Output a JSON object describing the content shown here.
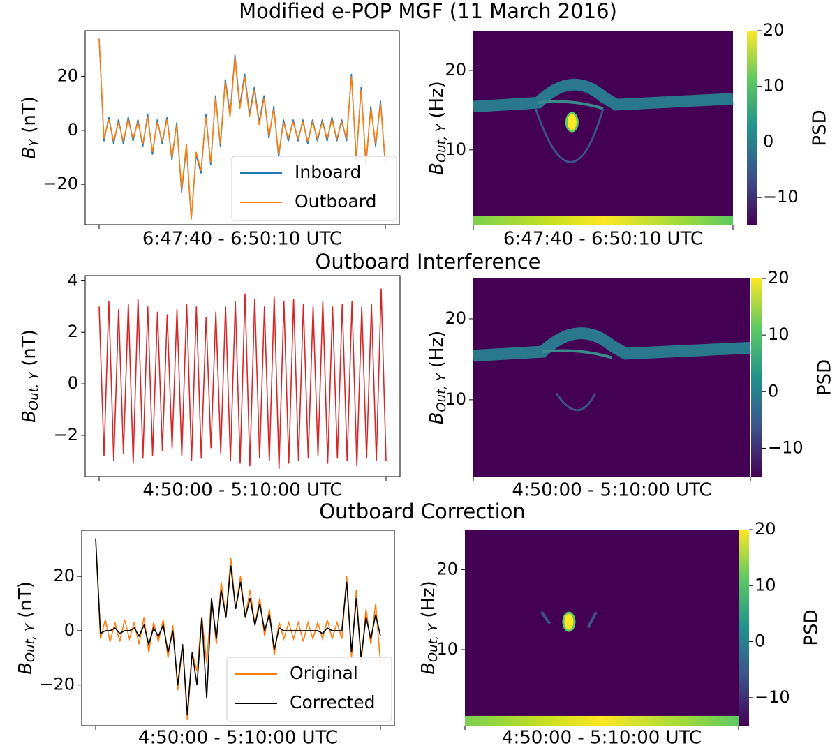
{
  "chart_data": [
    {
      "type": "line",
      "title": "Modified e-POP MGF (11 March 2016)",
      "x_label": "6:47:40 - 6:50:10 UTC",
      "y_label": {
        "base": "B",
        "sub": "Y",
        "unit": " (nT)"
      },
      "ylim": [
        -35,
        37
      ],
      "yticks": [
        {
          "value": -20,
          "label": "−20"
        },
        0,
        20
      ],
      "legend": "lower right",
      "series": [
        {
          "name": "Inboard",
          "color": "#1f77b4",
          "values": [
            34,
            -4,
            5,
            -5,
            4,
            -5,
            5,
            -4,
            4,
            -6,
            6,
            -9,
            4,
            -5,
            5,
            -11,
            3,
            -23,
            -6,
            -33,
            -9,
            -16,
            6,
            -13,
            13,
            -6,
            19,
            6,
            28,
            9,
            21,
            6,
            16,
            3,
            13,
            -3,
            9,
            -10,
            4,
            -4,
            4,
            -4,
            4,
            -5,
            4,
            -4,
            4,
            -4,
            5,
            -4,
            4,
            -4,
            21,
            -11,
            16,
            -13,
            9,
            -6,
            11,
            -13
          ]
        },
        {
          "name": "Outboard",
          "color": "#ff7f0e",
          "values": [
            34,
            -3,
            4,
            -4,
            3,
            -4,
            4,
            -3,
            3,
            -5,
            5,
            -8,
            3,
            -4,
            4,
            -10,
            2,
            -22,
            -5,
            -33,
            -8,
            -15,
            5,
            -12,
            12,
            -5,
            18,
            5,
            27,
            8,
            20,
            5,
            15,
            2,
            12,
            -2,
            8,
            -9,
            3,
            -3,
            3,
            -3,
            3,
            -4,
            3,
            -3,
            3,
            -3,
            4,
            -3,
            3,
            -3,
            20,
            -10,
            15,
            -12,
            8,
            -5,
            10,
            -12
          ]
        }
      ]
    },
    {
      "type": "spectrogram",
      "x_label": "6:47:40 - 6:50:10 UTC",
      "y_label": {
        "base": "B",
        "sub": "Out, Y",
        "unit": " (Hz)"
      },
      "ylim": [
        0.5,
        25
      ],
      "yticks": [
        10,
        20
      ],
      "colorbar": {
        "label": "PSD",
        "lim": [
          -15,
          20
        ],
        "ticks": [
          {
            "value": -10,
            "label": "−10"
          },
          0,
          10,
          20
        ]
      }
    },
    {
      "type": "line",
      "title": "Outboard Interference",
      "x_label": "4:50:00 - 5:10:00 UTC",
      "y_label": {
        "base": "B",
        "sub": "Out, Y",
        "unit": " (nT)"
      },
      "ylim": [
        -3.6,
        4.2
      ],
      "yticks": [
        {
          "value": -2,
          "label": "−2"
        },
        0,
        2,
        4
      ],
      "series": [
        {
          "color": "#d62728",
          "values": [
            3,
            -2.8,
            3.2,
            -3,
            2.9,
            -2.7,
            3.1,
            -3.1,
            3.3,
            -2.9,
            3,
            -2.8,
            2.8,
            -2.6,
            2.7,
            -2.5,
            2.9,
            -2.8,
            3.1,
            -3,
            3,
            -2.9,
            2.6,
            -2.5,
            2.8,
            -2.7,
            3,
            -3,
            3.2,
            -3.1,
            3.5,
            -3.2,
            3.3,
            -2.9,
            3,
            -3,
            3.4,
            -3.3,
            3.2,
            -3.1,
            3.3,
            -3,
            3.1,
            -2.9,
            3,
            -2.8,
            3.2,
            -3.1,
            3,
            -2.9,
            3.1,
            -3,
            3.2,
            -3.2,
            3,
            -2.9,
            3.1,
            -3,
            3.7,
            -3
          ]
        }
      ]
    },
    {
      "type": "spectrogram",
      "x_label": "4:50:00 - 5:10:00 UTC",
      "y_label": {
        "base": "B",
        "sub": "Out, Y",
        "unit": " (Hz)"
      },
      "ylim": [
        0.5,
        25
      ],
      "yticks": [
        10,
        20
      ],
      "colorbar": {
        "label": "PSD",
        "lim": [
          -15,
          20
        ],
        "ticks": [
          {
            "value": -10,
            "label": "−10"
          },
          0,
          10,
          20
        ]
      }
    },
    {
      "type": "line",
      "title": "Outboard Correction",
      "x_label": "4:50:00 - 5:10:00 UTC",
      "y_label": {
        "base": "B",
        "sub": "Out, Y",
        "unit": " (nT)"
      },
      "ylim": [
        -35,
        37
      ],
      "yticks": [
        {
          "value": -20,
          "label": "−20"
        },
        0,
        20
      ],
      "legend": "lower right",
      "series": [
        {
          "name": "Original",
          "color": "#ff7f0e",
          "values": [
            34,
            -3,
            4,
            -4,
            3,
            -4,
            4,
            -3,
            3,
            -5,
            5,
            -8,
            3,
            -4,
            4,
            -10,
            2,
            -22,
            -5,
            -33,
            -8,
            -15,
            5,
            -12,
            12,
            -5,
            18,
            5,
            27,
            8,
            20,
            5,
            15,
            2,
            12,
            -2,
            8,
            -9,
            3,
            -3,
            3,
            -3,
            3,
            -4,
            3,
            -3,
            3,
            -3,
            4,
            -3,
            3,
            -3,
            20,
            -10,
            15,
            -12,
            8,
            -5,
            10,
            -12
          ]
        },
        {
          "name": "Corrected",
          "color": "#000000",
          "values": [
            34,
            -1,
            0,
            0,
            1,
            -1,
            0,
            0,
            1,
            -2,
            2,
            -5,
            1,
            -2,
            2,
            -8,
            0,
            -20,
            -5,
            -31,
            -8,
            -20,
            5,
            -25,
            12,
            -3,
            15,
            5,
            24,
            8,
            18,
            5,
            12,
            2,
            10,
            0,
            6,
            -7,
            1,
            0,
            0,
            0,
            0,
            0,
            0,
            0,
            0,
            -1,
            1,
            0,
            0,
            0,
            18,
            -8,
            12,
            -10,
            5,
            -3,
            6,
            -2
          ]
        }
      ]
    },
    {
      "type": "spectrogram",
      "x_label": "4:50:00 - 5:10:00 UTC",
      "y_label": {
        "base": "B",
        "sub": "Out, Y",
        "unit": " (Hz)"
      },
      "ylim": [
        0.5,
        25
      ],
      "yticks": [
        10,
        20
      ],
      "colorbar": {
        "label": "PSD",
        "lim": [
          -15,
          20
        ],
        "ticks": [
          {
            "value": -10,
            "label": "−10"
          },
          0,
          10,
          20
        ]
      }
    }
  ]
}
